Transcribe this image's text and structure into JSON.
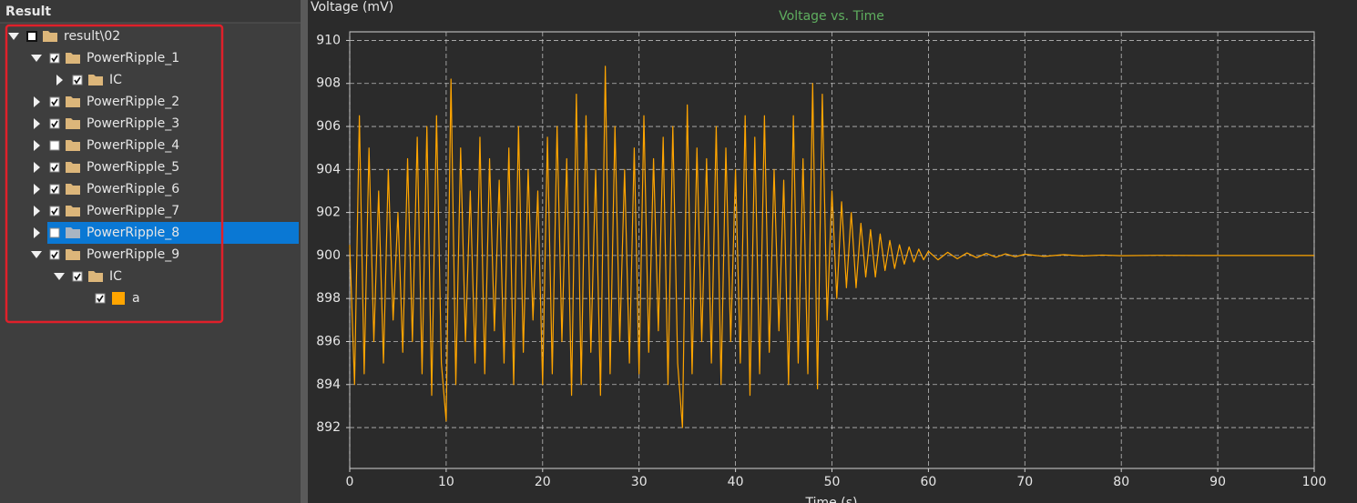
{
  "panel": {
    "title": "Result",
    "nodes": [
      {
        "label": "result\\02",
        "level": 0,
        "expanded": true,
        "checked": "indeterminate",
        "icon": "folder"
      },
      {
        "label": "PowerRipple_1",
        "level": 1,
        "expanded": true,
        "checked": true,
        "icon": "folder"
      },
      {
        "label": "IC",
        "level": 2,
        "expanded": false,
        "checked": true,
        "icon": "folder"
      },
      {
        "label": "PowerRipple_2",
        "level": 1,
        "expanded": false,
        "checked": true,
        "icon": "folder"
      },
      {
        "label": "PowerRipple_3",
        "level": 1,
        "expanded": false,
        "checked": true,
        "icon": "folder"
      },
      {
        "label": "PowerRipple_4",
        "level": 1,
        "expanded": false,
        "checked": false,
        "icon": "folder"
      },
      {
        "label": "PowerRipple_5",
        "level": 1,
        "expanded": false,
        "checked": true,
        "icon": "folder"
      },
      {
        "label": "PowerRipple_6",
        "level": 1,
        "expanded": false,
        "checked": true,
        "icon": "folder"
      },
      {
        "label": "PowerRipple_7",
        "level": 1,
        "expanded": false,
        "checked": true,
        "icon": "folder"
      },
      {
        "label": "PowerRipple_8",
        "level": 1,
        "expanded": false,
        "checked": false,
        "icon": "folder",
        "selected": true
      },
      {
        "label": "PowerRipple_9",
        "level": 1,
        "expanded": true,
        "checked": true,
        "icon": "folder"
      },
      {
        "label": "IC",
        "level": 2,
        "expanded": true,
        "checked": true,
        "icon": "folder"
      },
      {
        "label": "a",
        "level": 3,
        "expanded": null,
        "checked": true,
        "icon": "series"
      }
    ]
  },
  "chart_data": {
    "type": "line",
    "title": "Voltage vs. Time",
    "ylabel": "Voltage (mV)",
    "xlabel": "Time (s)",
    "color": "#ffa500",
    "grid": true,
    "xlim": [
      0,
      100
    ],
    "xticks": [
      0,
      10,
      20,
      30,
      40,
      50,
      60,
      70,
      80,
      90,
      100
    ],
    "ylim": [
      890.1,
      910.4
    ],
    "yticks": [
      892,
      894,
      896,
      898,
      900,
      902,
      904,
      906,
      908,
      910
    ],
    "x": [
      0,
      0.5,
      1,
      1.5,
      2,
      2.5,
      3,
      3.5,
      4,
      4.5,
      5,
      5.5,
      6,
      6.5,
      7,
      7.5,
      8,
      8.5,
      9,
      9.5,
      10,
      10.5,
      11,
      11.5,
      12,
      12.5,
      13,
      13.5,
      14,
      14.5,
      15,
      15.5,
      16,
      16.5,
      17,
      17.5,
      18,
      18.5,
      19,
      19.5,
      20,
      20.5,
      21,
      21.5,
      22,
      22.5,
      23,
      23.5,
      24,
      24.5,
      25,
      25.5,
      26,
      26.5,
      27,
      27.5,
      28,
      28.5,
      29,
      29.5,
      30,
      30.5,
      31,
      31.5,
      32,
      32.5,
      33,
      33.5,
      34,
      34.5,
      35,
      35.5,
      36,
      36.5,
      37,
      37.5,
      38,
      38.5,
      39,
      39.5,
      40,
      40.5,
      41,
      41.5,
      42,
      42.5,
      43,
      43.5,
      44,
      44.5,
      45,
      45.5,
      46,
      46.5,
      47,
      47.5,
      48,
      48.5,
      49,
      49.5,
      50,
      50.5,
      51,
      51.5,
      52,
      52.5,
      53,
      53.5,
      54,
      54.5,
      55,
      55.5,
      56,
      56.5,
      57,
      57.5,
      58,
      58.5,
      59,
      59.5,
      60,
      61,
      62,
      63,
      64,
      65,
      66,
      67,
      68,
      69,
      70,
      72,
      74,
      76,
      78,
      80,
      84,
      88,
      100
    ],
    "values": [
      900.5,
      894,
      906.5,
      894.5,
      905,
      896,
      903,
      895,
      904,
      897,
      902,
      895.5,
      904.5,
      896,
      905.5,
      894.5,
      906,
      893.5,
      906.5,
      895,
      892.3,
      908.2,
      894,
      905,
      896,
      903,
      895,
      905.5,
      894.5,
      904.5,
      896.5,
      903.5,
      895,
      905,
      894,
      906,
      895.5,
      904,
      897,
      903,
      894,
      905.5,
      894.5,
      906,
      896,
      904.5,
      893.5,
      907.5,
      894,
      906.5,
      895.5,
      904,
      893.5,
      908.8,
      894.5,
      906,
      896,
      904,
      895,
      905,
      894.5,
      906.5,
      895.5,
      904.5,
      896.5,
      905.5,
      894,
      906,
      895,
      892,
      907,
      894.5,
      905,
      896,
      904.5,
      895,
      906,
      894,
      905,
      896,
      904,
      895,
      906.5,
      893.5,
      905.5,
      894.5,
      906.5,
      895.5,
      904,
      896.5,
      903.5,
      894,
      906.5,
      895,
      904.5,
      894.5,
      908,
      893.8,
      907.5,
      897,
      903,
      898,
      902.5,
      898.5,
      902,
      898.5,
      901.5,
      899,
      901.2,
      899,
      901,
      899.3,
      900.7,
      899.4,
      900.5,
      899.6,
      900.4,
      899.7,
      900.3,
      899.8,
      900.2,
      899.8,
      900.15,
      899.85,
      900.12,
      899.9,
      900.1,
      899.92,
      900.08,
      899.94,
      900.06,
      899.96,
      900.04,
      899.98,
      900.02,
      899.99,
      900.01,
      900,
      900
    ]
  }
}
